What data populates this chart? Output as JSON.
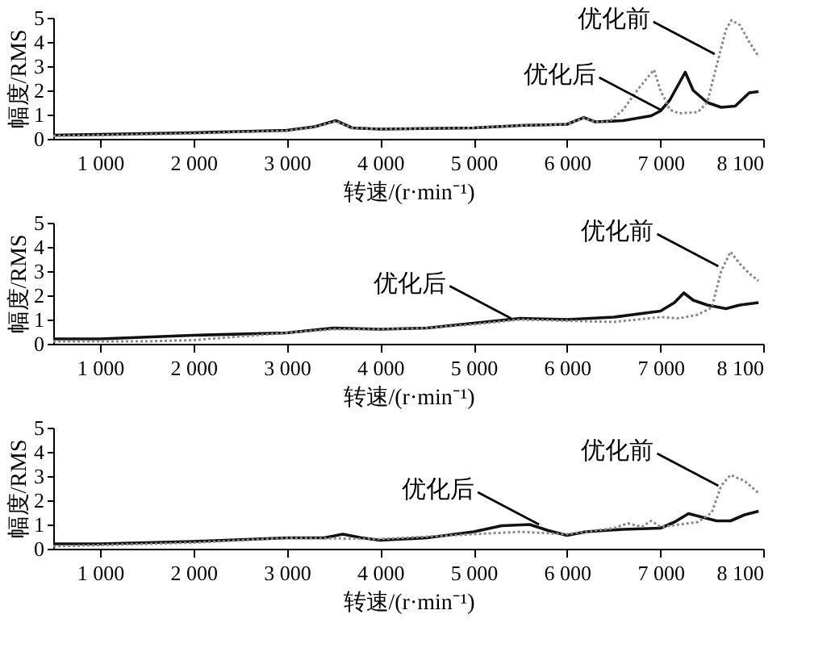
{
  "chart_data": [
    {
      "type": "line",
      "xlabel": "转速/(r·min⁻¹)",
      "ylabel": "幅度/RMS",
      "xlim": [
        500,
        8100
      ],
      "ylim": [
        0,
        5
      ],
      "yticks": [
        0,
        1,
        2,
        3,
        4,
        5
      ],
      "xticks": [
        {
          "value": 1000,
          "label": "1 000"
        },
        {
          "value": 2000,
          "label": "2 000"
        },
        {
          "value": 3000,
          "label": "3 000"
        },
        {
          "value": 4000,
          "label": "4 000"
        },
        {
          "value": 5000,
          "label": "5 000"
        },
        {
          "value": 6000,
          "label": "6 000"
        },
        {
          "value": 7000,
          "label": "7 000"
        },
        {
          "value": 8100,
          "label": "8 100"
        }
      ],
      "grid": false,
      "series": [
        {
          "color": "#111111",
          "line_style": "solid",
          "x": [
            500,
            1000,
            2000,
            2500,
            3000,
            3300,
            3525,
            3700,
            4000,
            5000,
            5500,
            6000,
            6180,
            6300,
            6600,
            6900,
            7000,
            7100,
            7265,
            7350,
            7500,
            7650,
            7800,
            7950,
            8050
          ],
          "values": [
            0.15,
            0.18,
            0.25,
            0.3,
            0.35,
            0.5,
            0.75,
            0.45,
            0.4,
            0.45,
            0.55,
            0.6,
            0.88,
            0.7,
            0.75,
            0.95,
            1.15,
            1.6,
            2.75,
            2.0,
            1.5,
            1.3,
            1.35,
            1.9,
            1.95
          ]
        },
        {
          "color": "#888888",
          "line_style": "dotted",
          "x": [
            500,
            1000,
            2000,
            2500,
            3000,
            3300,
            3525,
            3700,
            4000,
            5000,
            5500,
            6000,
            6180,
            6300,
            6450,
            6600,
            6750,
            6930,
            7000,
            7100,
            7200,
            7400,
            7500,
            7600,
            7700,
            7760,
            7850,
            7950,
            8050
          ],
          "values": [
            0.12,
            0.15,
            0.22,
            0.28,
            0.33,
            0.48,
            0.72,
            0.45,
            0.4,
            0.45,
            0.55,
            0.6,
            0.85,
            0.7,
            0.7,
            1.2,
            2.0,
            2.85,
            2.0,
            1.2,
            1.05,
            1.1,
            1.5,
            3.0,
            4.5,
            4.9,
            4.7,
            4.0,
            3.4
          ]
        }
      ],
      "annotations": [
        {
          "text": "优化前",
          "x": 7580,
          "y": 3.5
        },
        {
          "text": "优化后",
          "x": 7000,
          "y": 1.2
        }
      ]
    },
    {
      "type": "line",
      "xlabel": "转速/(r·min⁻¹)",
      "ylabel": "幅度/RMS",
      "xlim": [
        500,
        8100
      ],
      "ylim": [
        0,
        5
      ],
      "yticks": [
        0,
        1,
        2,
        3,
        4,
        5
      ],
      "xticks": [
        {
          "value": 1000,
          "label": "1 000"
        },
        {
          "value": 2000,
          "label": "2 000"
        },
        {
          "value": 3000,
          "label": "3 000"
        },
        {
          "value": 4000,
          "label": "4 000"
        },
        {
          "value": 5000,
          "label": "5 000"
        },
        {
          "value": 6000,
          "label": "6 000"
        },
        {
          "value": 7000,
          "label": "7 000"
        },
        {
          "value": 8100,
          "label": "8 100"
        }
      ],
      "grid": false,
      "series": [
        {
          "color": "#111111",
          "line_style": "solid",
          "x": [
            500,
            1000,
            2000,
            3000,
            3500,
            4000,
            4500,
            5000,
            5500,
            6000,
            6500,
            7000,
            7150,
            7250,
            7350,
            7500,
            7700,
            7850,
            8050
          ],
          "values": [
            0.2,
            0.2,
            0.35,
            0.45,
            0.65,
            0.6,
            0.65,
            0.85,
            1.05,
            1.0,
            1.1,
            1.35,
            1.7,
            2.1,
            1.8,
            1.6,
            1.45,
            1.6,
            1.7
          ]
        },
        {
          "color": "#888888",
          "line_style": "dotted",
          "x": [
            500,
            1000,
            1500,
            2000,
            2500,
            3000,
            3500,
            4000,
            4500,
            5000,
            5500,
            6000,
            6500,
            7000,
            7200,
            7400,
            7550,
            7650,
            7750,
            7850,
            7950,
            8050
          ],
          "values": [
            0.1,
            0.1,
            0.1,
            0.15,
            0.3,
            0.45,
            0.6,
            0.6,
            0.65,
            0.8,
            1.0,
            0.95,
            0.9,
            1.1,
            1.05,
            1.2,
            1.5,
            3.0,
            3.8,
            3.3,
            2.9,
            2.6
          ]
        }
      ],
      "annotations": [
        {
          "text": "优化前",
          "x": 7620,
          "y": 3.2
        },
        {
          "text": "优化后",
          "x": 5400,
          "y": 1.05
        }
      ]
    },
    {
      "type": "line",
      "xlabel": "转速/(r·min⁻¹)",
      "ylabel": "幅度/RMS",
      "xlim": [
        500,
        8100
      ],
      "ylim": [
        0,
        5
      ],
      "yticks": [
        0,
        1,
        2,
        3,
        4,
        5
      ],
      "xticks": [
        {
          "value": 1000,
          "label": "1 000"
        },
        {
          "value": 2000,
          "label": "2 000"
        },
        {
          "value": 3000,
          "label": "3 000"
        },
        {
          "value": 4000,
          "label": "4 000"
        },
        {
          "value": 5000,
          "label": "5 000"
        },
        {
          "value": 6000,
          "label": "6 000"
        },
        {
          "value": 7000,
          "label": "7 000"
        },
        {
          "value": 8100,
          "label": "8 100"
        }
      ],
      "grid": false,
      "series": [
        {
          "color": "#111111",
          "line_style": "solid",
          "x": [
            500,
            1000,
            2000,
            3000,
            3400,
            3600,
            3800,
            4000,
            4500,
            5000,
            5300,
            5600,
            5800,
            6000,
            6200,
            6600,
            7000,
            7150,
            7300,
            7450,
            7600,
            7750,
            7900,
            8050
          ],
          "values": [
            0.2,
            0.2,
            0.3,
            0.45,
            0.45,
            0.6,
            0.45,
            0.35,
            0.45,
            0.7,
            0.95,
            1.0,
            0.75,
            0.55,
            0.7,
            0.8,
            0.85,
            1.1,
            1.45,
            1.3,
            1.15,
            1.15,
            1.4,
            1.55
          ]
        },
        {
          "color": "#888888",
          "line_style": "dotted",
          "x": [
            500,
            1000,
            2000,
            3000,
            4000,
            5000,
            5500,
            6000,
            6500,
            6650,
            6800,
            6900,
            7000,
            7200,
            7400,
            7550,
            7650,
            7750,
            7900,
            8050
          ],
          "values": [
            0.1,
            0.15,
            0.25,
            0.45,
            0.4,
            0.6,
            0.7,
            0.6,
            0.85,
            1.05,
            0.9,
            1.15,
            0.9,
            1.0,
            1.1,
            1.5,
            2.6,
            3.05,
            2.8,
            2.3
          ]
        }
      ],
      "annotations": [
        {
          "text": "优化前",
          "x": 7620,
          "y": 2.6
        },
        {
          "text": "优化后",
          "x": 5700,
          "y": 1.0
        }
      ]
    }
  ]
}
